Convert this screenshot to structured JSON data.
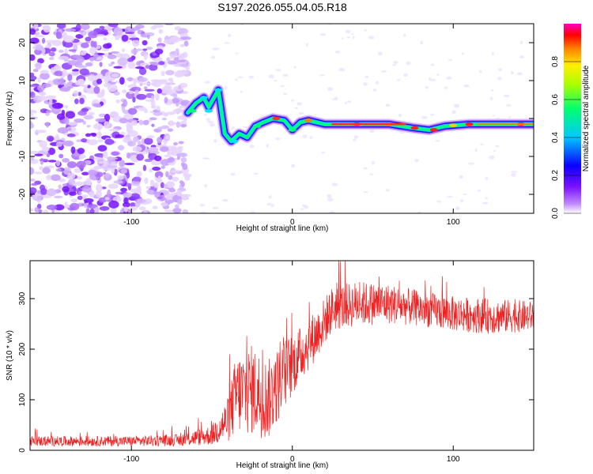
{
  "title": "S197.2026.055.04.05.R18",
  "chart_data": [
    {
      "type": "heatmap",
      "xlabel": "Height of straight line (km)",
      "ylabel": "Frequency (Hz)",
      "xlim": [
        -163,
        150
      ],
      "ylim": [
        -25,
        25
      ],
      "xticks": [
        -100,
        0,
        100
      ],
      "xtick_labels": [
        "-100",
        "0",
        "100"
      ],
      "yticks": [
        -20,
        -10,
        0,
        10,
        20
      ],
      "ytick_labels": [
        "-20",
        "-10",
        "0",
        "10",
        "20"
      ],
      "colorbar": {
        "label": "Normalized spectral amplitude",
        "range": [
          0,
          1
        ],
        "ticks": [
          0.0,
          0.2,
          0.4,
          0.6,
          0.8
        ],
        "tick_labels": [
          "0.0",
          "0.2",
          "0.4",
          "0.6",
          "0.8"
        ],
        "colors": [
          "#ffffff",
          "#a25bff",
          "#6a00ff",
          "#0000ff",
          "#00c8ff",
          "#00ff80",
          "#b4ff00",
          "#ffee00",
          "#ff8000",
          "#ff0000",
          "#ff00c8"
        ]
      },
      "noise_region_x": [
        -163,
        -65
      ],
      "ridge": [
        {
          "x": -65,
          "y": 1.5
        },
        {
          "x": -60,
          "y": 4
        },
        {
          "x": -55,
          "y": 5.5
        },
        {
          "x": -52,
          "y": 3
        },
        {
          "x": -48,
          "y": 6
        },
        {
          "x": -46,
          "y": 7.5
        },
        {
          "x": -42,
          "y": -4
        },
        {
          "x": -38,
          "y": -6
        },
        {
          "x": -33,
          "y": -4
        },
        {
          "x": -28,
          "y": -5
        },
        {
          "x": -23,
          "y": -2
        },
        {
          "x": -18,
          "y": -1
        },
        {
          "x": -12,
          "y": 0
        },
        {
          "x": -5,
          "y": -0.5
        },
        {
          "x": 0,
          "y": -3
        },
        {
          "x": 5,
          "y": -1
        },
        {
          "x": 10,
          "y": -0.5
        },
        {
          "x": 20,
          "y": -1.5
        },
        {
          "x": 40,
          "y": -1.5
        },
        {
          "x": 60,
          "y": -1.5
        },
        {
          "x": 75,
          "y": -2.5
        },
        {
          "x": 85,
          "y": -3
        },
        {
          "x": 95,
          "y": -2
        },
        {
          "x": 110,
          "y": -1.5
        },
        {
          "x": 130,
          "y": -1.5
        },
        {
          "x": 150,
          "y": -1.5
        }
      ]
    },
    {
      "type": "line",
      "xlabel": "Height of straight line (km)",
      "ylabel": "SNR (10 * v/v)",
      "xlim": [
        -163,
        150
      ],
      "ylim": [
        0,
        375
      ],
      "xticks": [
        -100,
        0,
        100
      ],
      "xtick_labels": [
        "-100",
        "0",
        "100"
      ],
      "yticks": [
        0,
        100,
        200,
        300
      ],
      "ytick_labels": [
        "0",
        "100",
        "200",
        "300"
      ],
      "series_color": "#ee2222",
      "envelope": [
        {
          "x": -163,
          "mean": 18,
          "spread": 10
        },
        {
          "x": -100,
          "mean": 18,
          "spread": 10
        },
        {
          "x": -70,
          "mean": 20,
          "spread": 12
        },
        {
          "x": -50,
          "mean": 30,
          "spread": 20
        },
        {
          "x": -40,
          "mean": 60,
          "spread": 45
        },
        {
          "x": -35,
          "mean": 110,
          "spread": 80
        },
        {
          "x": -25,
          "mean": 120,
          "spread": 90
        },
        {
          "x": -15,
          "mean": 100,
          "spread": 80
        },
        {
          "x": -5,
          "mean": 150,
          "spread": 70
        },
        {
          "x": 5,
          "mean": 190,
          "spread": 55
        },
        {
          "x": 15,
          "mean": 230,
          "spread": 50
        },
        {
          "x": 25,
          "mean": 280,
          "spread": 45
        },
        {
          "x": 40,
          "mean": 290,
          "spread": 45
        },
        {
          "x": 60,
          "mean": 290,
          "spread": 40
        },
        {
          "x": 80,
          "mean": 280,
          "spread": 35
        },
        {
          "x": 100,
          "mean": 270,
          "spread": 35
        },
        {
          "x": 125,
          "mean": 265,
          "spread": 35
        },
        {
          "x": 150,
          "mean": 265,
          "spread": 30
        }
      ]
    }
  ]
}
